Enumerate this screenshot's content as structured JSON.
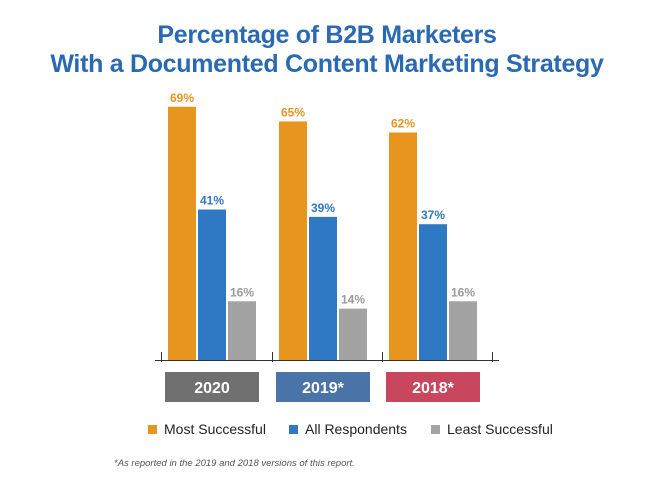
{
  "chart_data": {
    "type": "bar",
    "title": "Percentage of B2B Marketers",
    "subtitle": "With a Documented Content Marketing Strategy",
    "categories": [
      "2020",
      "2019*",
      "2018*"
    ],
    "category_colors": [
      "#707070",
      "#4a73a8",
      "#c8475e"
    ],
    "series": [
      {
        "name": "Most Successful",
        "color": "#e8951f",
        "values": [
          69,
          65,
          62
        ],
        "labels": [
          "69%",
          "65%",
          "62%"
        ]
      },
      {
        "name": "All Respondents",
        "color": "#2f78c4",
        "values": [
          41,
          39,
          37
        ],
        "labels": [
          "41%",
          "39%",
          "37%"
        ]
      },
      {
        "name": "Least Successful",
        "color": "#a3a3a3",
        "values": [
          16,
          14,
          16
        ],
        "labels": [
          "16%",
          "14%",
          "16%"
        ]
      }
    ],
    "label_colors": [
      "#e8951f",
      "#2f78c4",
      "#9a9a9a"
    ],
    "ylim": [
      0,
      100
    ],
    "grid": false,
    "legend": "bottom",
    "footnote": "*As reported in the 2019 and 2018 versions of this report."
  }
}
